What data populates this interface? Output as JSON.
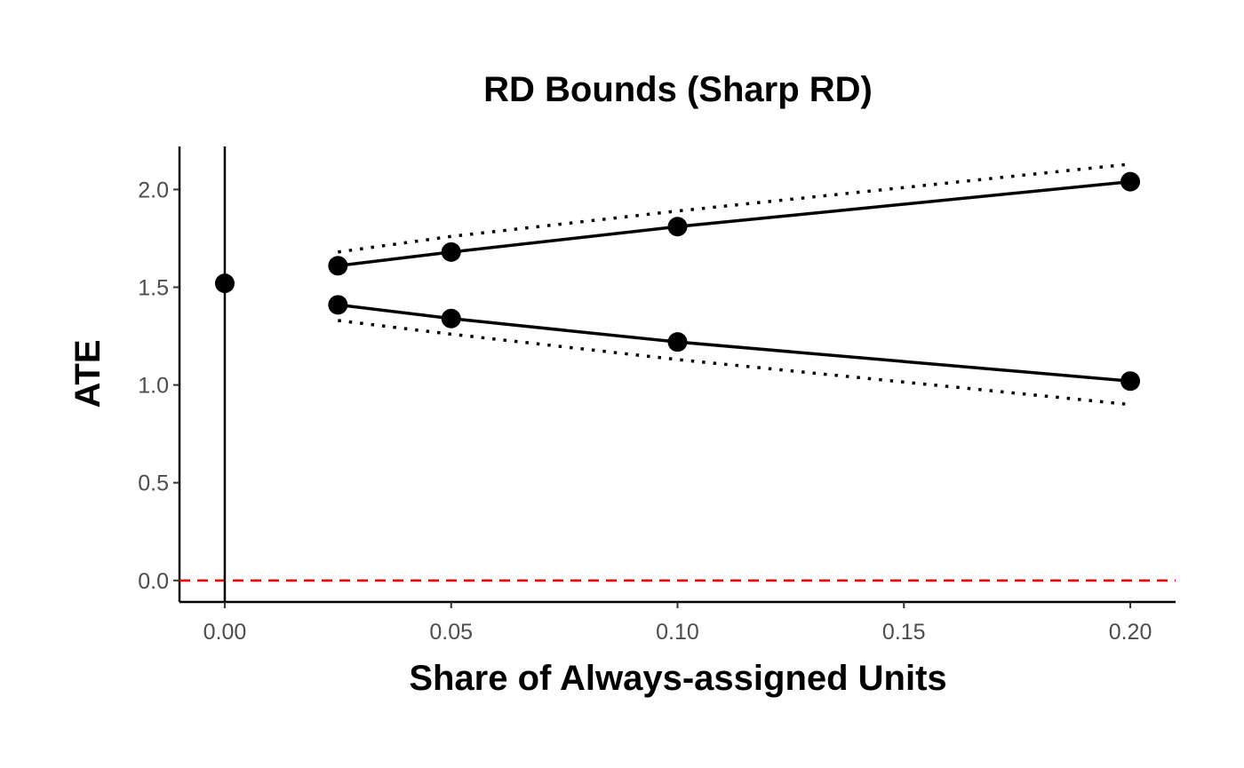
{
  "chart_data": {
    "type": "line",
    "title": "RD Bounds (Sharp RD)",
    "xlabel": "Share of Always-assigned Units",
    "ylabel": "ATE",
    "xlim": [
      -0.01,
      0.21
    ],
    "ylim": [
      -0.11,
      2.22
    ],
    "x_ticks": [
      0.0,
      0.05,
      0.1,
      0.15,
      0.2
    ],
    "x_tick_labels": [
      "0.00",
      "0.05",
      "0.10",
      "0.15",
      "0.20"
    ],
    "y_ticks": [
      0.0,
      0.5,
      1.0,
      1.5,
      2.0
    ],
    "y_tick_labels": [
      "0.0",
      "0.5",
      "1.0",
      "1.5",
      "2.0"
    ],
    "grid": false,
    "point_estimate": {
      "x": 0.0,
      "y": 1.52
    },
    "vertical_line_x": 0.0,
    "reference_line": {
      "y": 0.0,
      "color": "#ff0000",
      "style": "dashed"
    },
    "series": [
      {
        "style": "solid-with-points",
        "x": [
          0.025,
          0.05,
          0.1,
          0.2
        ],
        "y": [
          1.61,
          1.68,
          1.81,
          2.04
        ]
      },
      {
        "style": "solid-with-points",
        "x": [
          0.025,
          0.05,
          0.1,
          0.2
        ],
        "y": [
          1.41,
          1.34,
          1.22,
          1.02
        ]
      },
      {
        "style": "dotted",
        "x": [
          0.025,
          0.05,
          0.1,
          0.2
        ],
        "y": [
          1.68,
          1.76,
          1.89,
          2.13
        ]
      },
      {
        "style": "dotted",
        "x": [
          0.025,
          0.05,
          0.1,
          0.2
        ],
        "y": [
          1.33,
          1.26,
          1.13,
          0.9
        ]
      }
    ]
  }
}
